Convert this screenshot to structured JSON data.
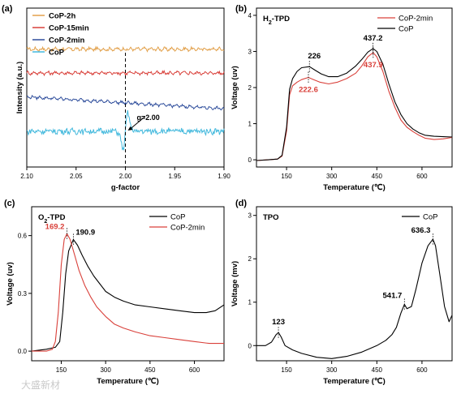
{
  "chart_data": [
    {
      "type": "line",
      "panel_label": "(a)",
      "xlabel": "g-factor",
      "ylabel": "Intensity (a.u.)",
      "xlim": [
        2.1,
        1.9
      ],
      "x_reversed": true,
      "xticks": [
        "2.10",
        "2.05",
        "2.00",
        "1.95",
        "1.90"
      ],
      "yticks": [],
      "grid": false,
      "legend_position": "top-left",
      "annotation": {
        "text": "g=2.00",
        "x": 2.0
      },
      "series": [
        {
          "name": "CoP-2h",
          "color": "#e2a04a",
          "offset": 3.85,
          "noise": 0.05,
          "signal": 0.0
        },
        {
          "name": "CoP-15min",
          "color": "#d9403a",
          "offset": 2.95,
          "noise": 0.05,
          "signal": 0.0
        },
        {
          "name": "CoP-2min",
          "color": "#2f4e9c",
          "offset": 2.05,
          "noise": 0.04,
          "signal": 0.0,
          "slope": -0.45
        },
        {
          "name": "CoP",
          "color": "#43b9dd",
          "offset": 0.75,
          "noise": 0.1,
          "signal": 1.1
        }
      ],
      "ylim": [
        -0.6,
        5.4
      ]
    },
    {
      "type": "line",
      "panel_label": "(b)",
      "title": "H2-TPD",
      "xlabel": "Temperature (℃)",
      "ylabel": "Voltage (uv)",
      "xlim": [
        50,
        700
      ],
      "ylim": [
        -0.2,
        4.2
      ],
      "xticks": [
        "150",
        "300",
        "450",
        "600"
      ],
      "yticks": [
        "0",
        "1",
        "2",
        "3",
        "4"
      ],
      "grid": false,
      "legend_position": "top-right",
      "series": [
        {
          "name": "CoP-2min",
          "color": "#d9403a",
          "x": [
            50,
            90,
            120,
            135,
            150,
            160,
            170,
            185,
            200,
            222.6,
            240,
            260,
            290,
            320,
            350,
            380,
            400,
            420,
            437.9,
            450,
            470,
            490,
            510,
            530,
            550,
            570,
            590,
            610,
            640,
            670,
            700
          ],
          "y": [
            -0.02,
            0.0,
            0.02,
            0.1,
            0.8,
            1.8,
            2.05,
            2.15,
            2.22,
            2.28,
            2.22,
            2.15,
            2.1,
            2.15,
            2.25,
            2.4,
            2.6,
            2.85,
            2.97,
            2.85,
            2.45,
            1.9,
            1.45,
            1.1,
            0.9,
            0.78,
            0.68,
            0.6,
            0.56,
            0.58,
            0.62
          ]
        },
        {
          "name": "CoP",
          "color": "#000000",
          "x": [
            50,
            90,
            120,
            135,
            150,
            160,
            170,
            185,
            200,
            226,
            245,
            265,
            290,
            320,
            350,
            380,
            400,
            420,
            437.2,
            450,
            470,
            490,
            510,
            530,
            550,
            570,
            590,
            610,
            640,
            670,
            700
          ],
          "y": [
            -0.02,
            0.0,
            0.02,
            0.12,
            0.9,
            1.95,
            2.25,
            2.45,
            2.55,
            2.58,
            2.48,
            2.38,
            2.3,
            2.3,
            2.4,
            2.6,
            2.78,
            2.98,
            3.08,
            3.0,
            2.65,
            2.1,
            1.6,
            1.25,
            1.0,
            0.85,
            0.75,
            0.68,
            0.65,
            0.64,
            0.63
          ]
        }
      ],
      "annotations": [
        {
          "text": "226",
          "x": 226,
          "y": 2.58,
          "color": "#000000"
        },
        {
          "text": "222.6",
          "x": 222.6,
          "y": 2.28,
          "color": "#d9403a"
        },
        {
          "text": "437.2",
          "x": 437.2,
          "y": 3.08,
          "color": "#000000"
        },
        {
          "text": "437.9",
          "x": 437.9,
          "y": 2.97,
          "color": "#d9403a"
        }
      ]
    },
    {
      "type": "line",
      "panel_label": "(c)",
      "title": "O2-TPD",
      "xlabel": "Temperature (℃)",
      "ylabel": "Voltage (uv)",
      "xlim": [
        50,
        700
      ],
      "ylim": [
        -0.05,
        0.75
      ],
      "xticks": [
        "150",
        "300",
        "450",
        "600"
      ],
      "yticks": [
        "0.0",
        "0.3",
        "0.6"
      ],
      "grid": false,
      "legend_position": "top-right",
      "series": [
        {
          "name": "CoP",
          "color": "#000000",
          "x": [
            50,
            100,
            130,
            145,
            155,
            165,
            175,
            190.9,
            205,
            220,
            240,
            260,
            280,
            300,
            330,
            360,
            400,
            450,
            500,
            550,
            600,
            640,
            670,
            700
          ],
          "y": [
            0.0,
            0.01,
            0.02,
            0.05,
            0.2,
            0.4,
            0.52,
            0.58,
            0.55,
            0.5,
            0.44,
            0.39,
            0.35,
            0.31,
            0.28,
            0.26,
            0.24,
            0.23,
            0.22,
            0.21,
            0.2,
            0.2,
            0.21,
            0.24
          ]
        },
        {
          "name": "CoP-2min",
          "color": "#d9403a",
          "x": [
            50,
            100,
            120,
            130,
            140,
            150,
            160,
            169.2,
            180,
            195,
            210,
            230,
            250,
            270,
            300,
            330,
            360,
            400,
            450,
            500,
            550,
            600,
            650,
            700
          ],
          "y": [
            0.0,
            0.0,
            0.01,
            0.05,
            0.2,
            0.45,
            0.58,
            0.61,
            0.58,
            0.5,
            0.42,
            0.34,
            0.28,
            0.23,
            0.18,
            0.14,
            0.12,
            0.1,
            0.08,
            0.07,
            0.06,
            0.05,
            0.04,
            0.04
          ]
        }
      ],
      "annotations": [
        {
          "text": "169.2",
          "x": 169.2,
          "y": 0.61,
          "color": "#d9403a"
        },
        {
          "text": "190.9",
          "x": 190.9,
          "y": 0.58,
          "color": "#000000"
        }
      ]
    },
    {
      "type": "line",
      "panel_label": "(d)",
      "title": "TPO",
      "xlabel": "Temperature (℃)",
      "ylabel": "Voltage (mv)",
      "xlim": [
        50,
        700
      ],
      "ylim": [
        -0.35,
        3.2
      ],
      "xticks": [
        "150",
        "300",
        "450",
        "600"
      ],
      "yticks": [
        "0",
        "1",
        "2",
        "3"
      ],
      "grid": false,
      "legend_position": "top-right",
      "series": [
        {
          "name": "CoP",
          "color": "#000000",
          "x": [
            50,
            80,
            100,
            115,
            123,
            132,
            145,
            170,
            200,
            250,
            300,
            350,
            400,
            450,
            480,
            500,
            515,
            530,
            541.7,
            550,
            565,
            580,
            600,
            620,
            636.3,
            645,
            660,
            675,
            690,
            700
          ],
          "y": [
            0.0,
            0.0,
            0.08,
            0.25,
            0.3,
            0.2,
            0.0,
            -0.1,
            -0.18,
            -0.27,
            -0.3,
            -0.25,
            -0.15,
            0.0,
            0.12,
            0.25,
            0.42,
            0.75,
            0.95,
            0.85,
            0.9,
            1.3,
            1.9,
            2.3,
            2.45,
            2.3,
            1.6,
            0.9,
            0.55,
            0.7
          ]
        }
      ],
      "annotations": [
        {
          "text": "123",
          "x": 123,
          "y": 0.3,
          "color": "#000000"
        },
        {
          "text": "541.7",
          "x": 541.7,
          "y": 0.95,
          "color": "#000000"
        },
        {
          "text": "636.3",
          "x": 636.3,
          "y": 2.45,
          "color": "#000000"
        }
      ]
    }
  ],
  "watermark": "大盛新材"
}
